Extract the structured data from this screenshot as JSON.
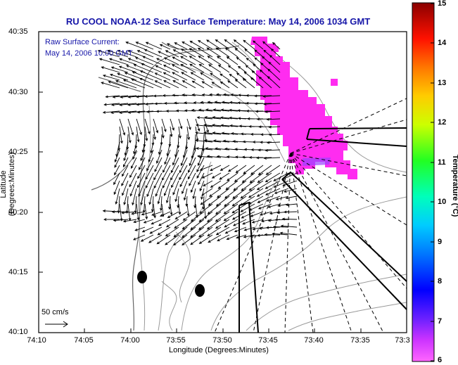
{
  "title": "RU COOL  NOAA-12  Sea Surface Temperature:  May 14, 2006 1034 GMT",
  "annotation": {
    "line1": "Raw Surface Current:",
    "line2": "May 14, 2006 10:00 GMT"
  },
  "axes": {
    "xlabel": "Longitude (Degrees:Minutes)",
    "ylabel": "Latitude (Degrees:Minutes)",
    "x_ticks": [
      "74:10",
      "74:05",
      "74:00",
      "73:55",
      "73:50",
      "73:45",
      "73:40",
      "73:35",
      "73:3"
    ],
    "y_ticks": [
      "40:35",
      "40:30",
      "40:25",
      "40:20",
      "40:15",
      "40:10"
    ]
  },
  "colorbar": {
    "label": "Temperature (°C)",
    "ticks": [
      "15",
      "14",
      "13",
      "12",
      "11",
      "10",
      "9",
      "8",
      "7",
      "6"
    ],
    "min": 6,
    "max": 15
  },
  "scale_arrow_label": "50 cm/s",
  "colors": {
    "title": "#1616a8",
    "sst_patch": "#ff2cf0",
    "arrows": "#000000",
    "bathymetry": "#9a9a9a"
  }
}
